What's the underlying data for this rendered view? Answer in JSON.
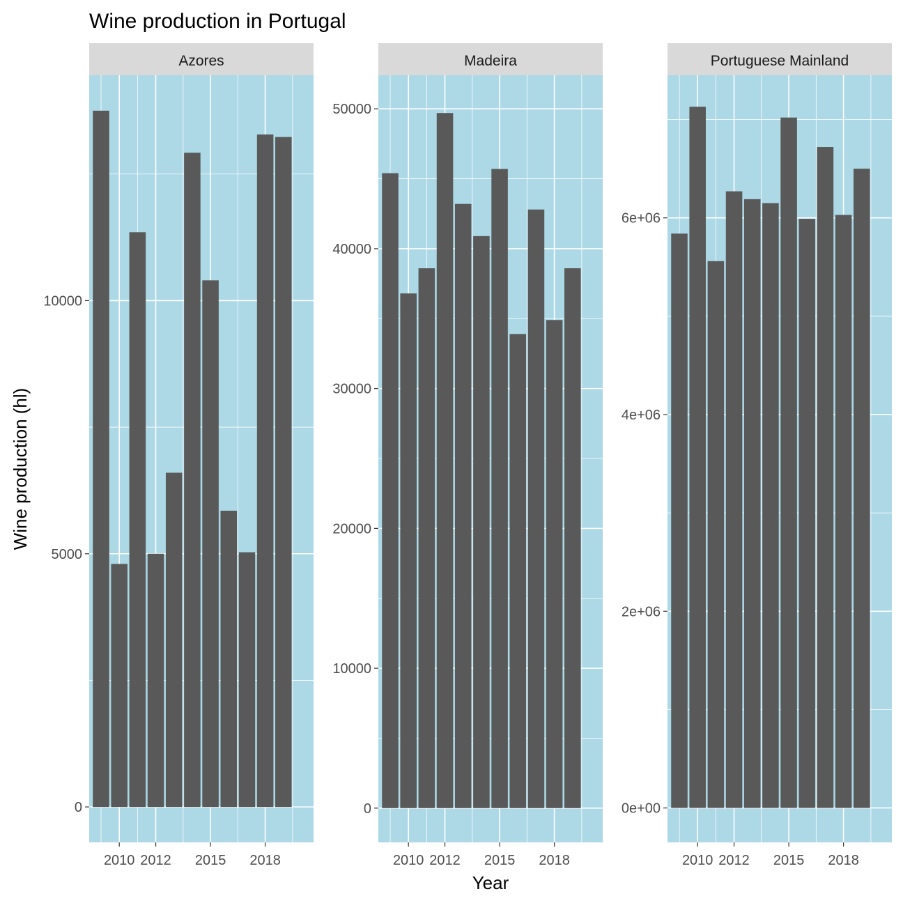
{
  "chart_data": {
    "type": "bar",
    "title": "Wine production in Portugal",
    "xlabel": "Year",
    "ylabel": "Wine production (hl)",
    "categories": [
      2009,
      2010,
      2011,
      2012,
      2013,
      2014,
      2015,
      2016,
      2017,
      2018,
      2019,
      2020
    ],
    "x_ticks": [
      2010,
      2012,
      2015,
      2018
    ],
    "panel_background": "#add8e6",
    "strip_background": "#d9d9d9",
    "bar_color": "#595959",
    "grid": true,
    "facets": [
      {
        "name": "Azores",
        "values": [
          13750,
          4800,
          11350,
          5000,
          6600,
          12920,
          10400,
          5850,
          5030,
          13280,
          13230,
          0
        ],
        "ylim": [
          -700,
          14450
        ],
        "y_ticks": [
          0,
          5000,
          10000
        ],
        "y_tick_labels": [
          "0",
          "5000",
          "10000"
        ]
      },
      {
        "name": "Madeira",
        "values": [
          45400,
          36800,
          38600,
          49700,
          43200,
          40900,
          45700,
          33900,
          42800,
          34900,
          38600,
          0
        ],
        "ylim": [
          -2450,
          52400
        ],
        "y_ticks": [
          0,
          10000,
          20000,
          30000,
          40000,
          50000
        ],
        "y_tick_labels": [
          "0",
          "10000",
          "20000",
          "30000",
          "40000",
          "50000"
        ]
      },
      {
        "name": "Portuguese Mainland",
        "values": [
          5840000,
          7130000,
          5560000,
          6270000,
          6190000,
          6150000,
          7020000,
          5990000,
          6720000,
          6030000,
          6500000,
          0
        ],
        "ylim": [
          -350000,
          7450000
        ],
        "y_ticks": [
          0,
          2000000,
          4000000,
          6000000
        ],
        "y_tick_labels": [
          "0e+00",
          "2e+06",
          "4e+06",
          "6e+06"
        ]
      }
    ]
  }
}
